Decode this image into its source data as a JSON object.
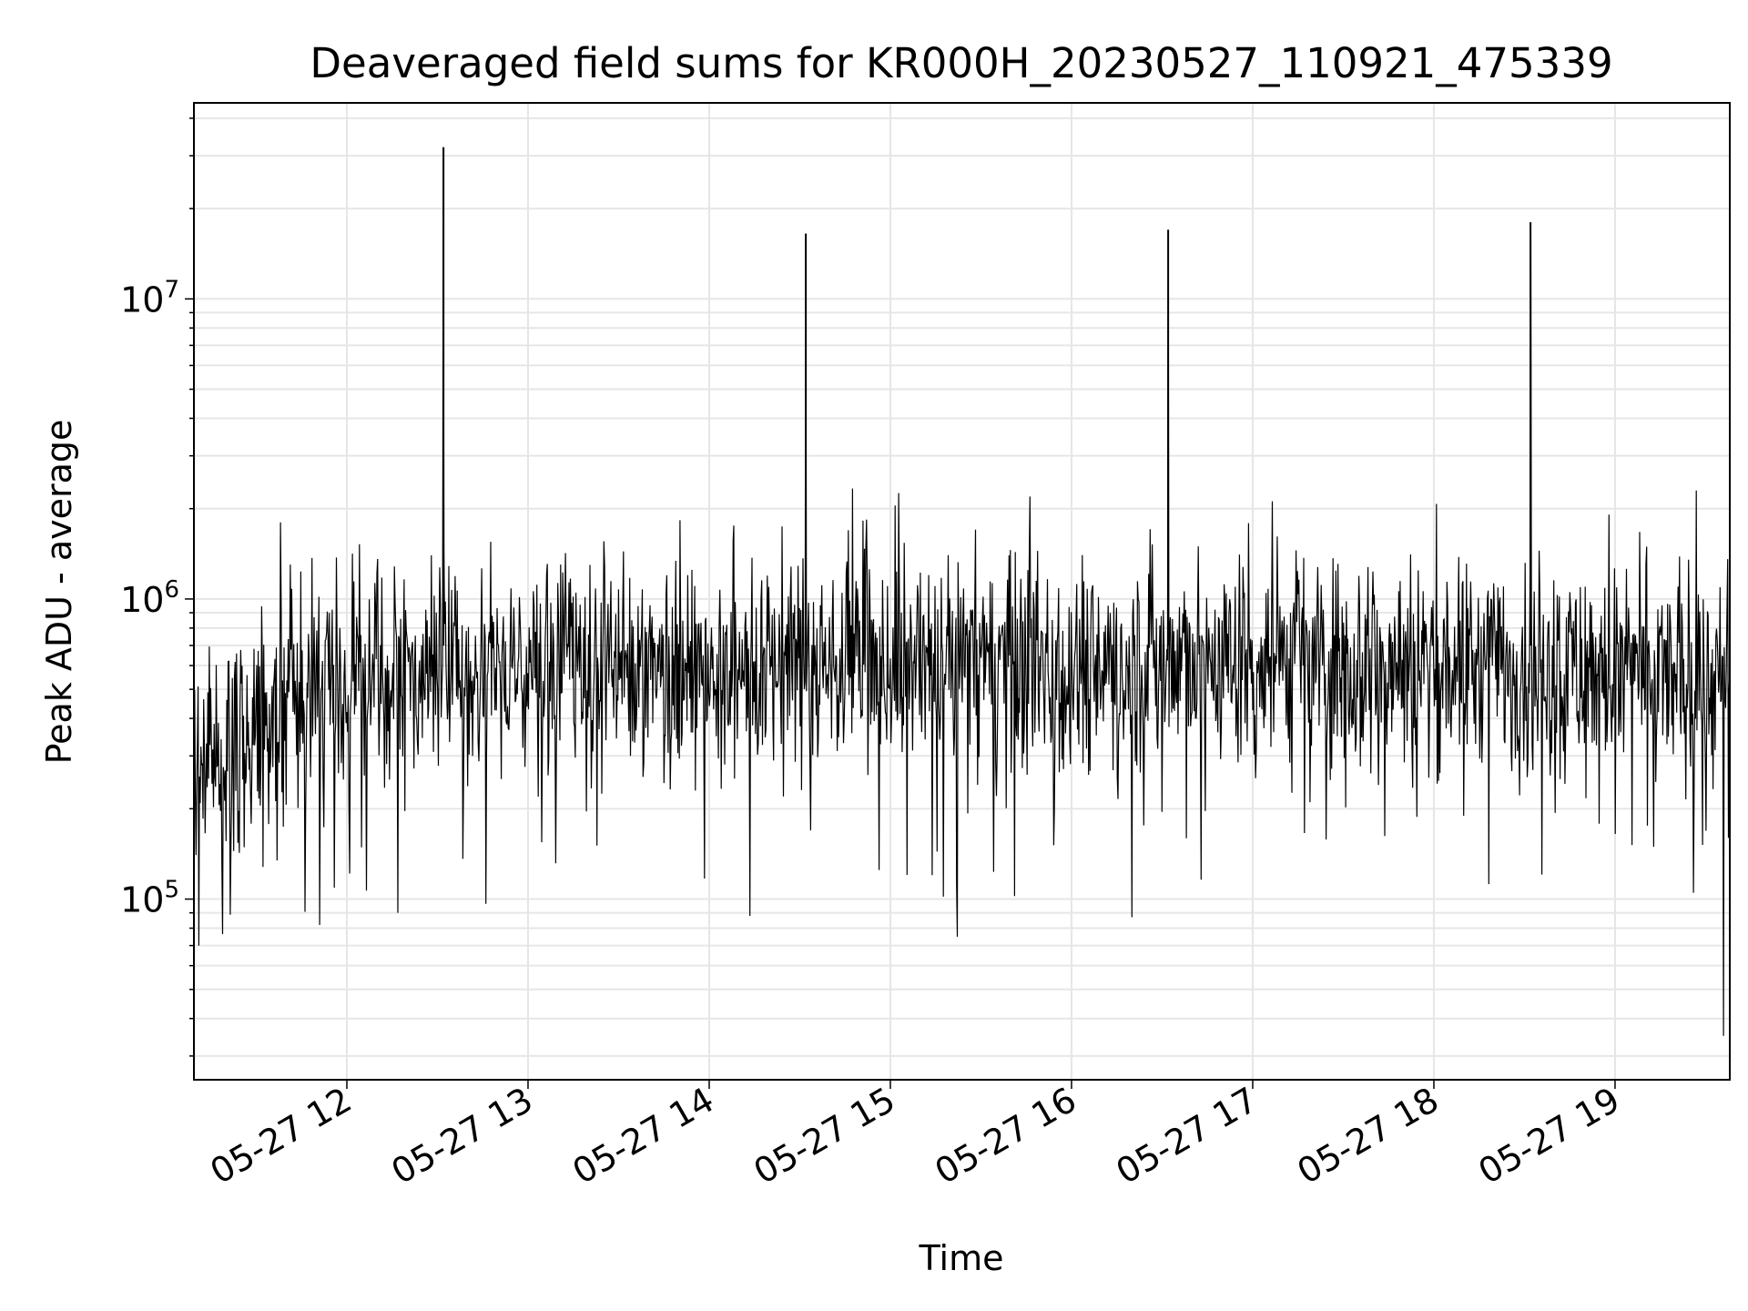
{
  "chart_data": {
    "type": "line",
    "title": "Deaveraged field sums for KR000H_20230527_110921_475339",
    "xlabel": "Time",
    "ylabel": "Peak ADU - average",
    "x_range": [
      "2023-05-27 11:09:21",
      "2023-05-27 19:38:00"
    ],
    "y_scale": "log",
    "ylim": [
      25000,
      45000000
    ],
    "x_ticks": [
      "05-27 12",
      "05-27 13",
      "05-27 14",
      "05-27 15",
      "05-27 16",
      "05-27 17",
      "05-27 18",
      "05-27 19"
    ],
    "y_ticks": [
      {
        "base": "10",
        "exp": "5",
        "value": 100000
      },
      {
        "base": "10",
        "exp": "6",
        "value": 1000000
      },
      {
        "base": "10",
        "exp": "7",
        "value": 10000000
      }
    ],
    "grid": true,
    "legend": "none",
    "series": [
      {
        "color": "#000000",
        "baseline_trend": [
          {
            "t": "2023-05-27 11:09",
            "y": 250000
          },
          {
            "t": "2023-05-27 11:40",
            "y": 480000
          },
          {
            "t": "2023-05-27 12:30",
            "y": 560000
          },
          {
            "t": "2023-05-27 14:30",
            "y": 600000
          },
          {
            "t": "2023-05-27 16:30",
            "y": 620000
          },
          {
            "t": "2023-05-27 18:30",
            "y": 600000
          },
          {
            "t": "2023-05-27 19:38",
            "y": 520000
          }
        ],
        "peaks": [
          {
            "t": "2023-05-27 12:32",
            "y": 32000000
          },
          {
            "t": "2023-05-27 14:32",
            "y": 16500000
          },
          {
            "t": "2023-05-27 16:32",
            "y": 17000000
          },
          {
            "t": "2023-05-27 18:32",
            "y": 18000000
          }
        ],
        "notable_points": [
          {
            "t": "2023-05-27 11:38",
            "y": 1800000
          },
          {
            "t": "2023-05-27 11:11",
            "y": 70000
          },
          {
            "t": "2023-05-27 11:51",
            "y": 82000
          },
          {
            "t": "2023-05-27 12:17",
            "y": 90000
          },
          {
            "t": "2023-05-27 19:27",
            "y": 2300000
          },
          {
            "t": "2023-05-27 19:26",
            "y": 105000
          },
          {
            "t": "2023-05-27 19:36",
            "y": 35000
          }
        ]
      }
    ]
  }
}
